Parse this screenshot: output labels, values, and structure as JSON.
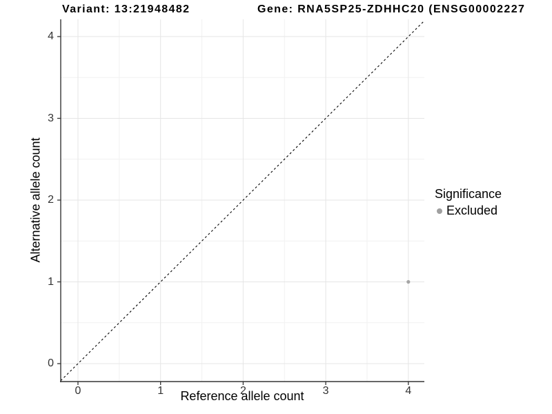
{
  "titles": {
    "variant": "Variant: 13:21948482",
    "gene": "Gene: RNA5SP25-ZDHHC20 (ENSG00002227"
  },
  "chart_data": {
    "type": "scatter",
    "title": "Variant: 13:21948482  /  Gene: RNA5SP25-ZDHHC20 (ENSG00002227…)",
    "xlabel": "Reference allele count",
    "ylabel": "Alternative allele count",
    "xlim": [
      -0.21,
      4.19
    ],
    "ylim": [
      -0.22,
      4.21
    ],
    "x_ticks": [
      0,
      1,
      2,
      3,
      4
    ],
    "y_ticks": [
      0,
      1,
      2,
      3,
      4
    ],
    "x_minor_ticks": [
      0.5,
      1.5,
      2.5,
      3.5
    ],
    "y_minor_ticks": [
      0.5,
      1.5,
      2.5,
      3.5
    ],
    "grid": "major and minor, light gray on white",
    "series": [
      {
        "name": "Excluded",
        "points": [
          {
            "x": 4,
            "y": 1
          }
        ],
        "color": "#a5a5a5"
      }
    ],
    "reference_line": {
      "description": "identity line y = x",
      "style": "dashed",
      "color": "#000000"
    },
    "legend": {
      "title": "Significance",
      "position": "right",
      "entries": [
        {
          "label": "Excluded",
          "color": "#a0a0a0"
        }
      ]
    },
    "colors": {
      "major_grid": "#e5e5e5",
      "minor_grid": "#f1f1f1",
      "axis_line": "#333333",
      "tick_text": "#333333",
      "point": "#a5a5a5"
    }
  }
}
